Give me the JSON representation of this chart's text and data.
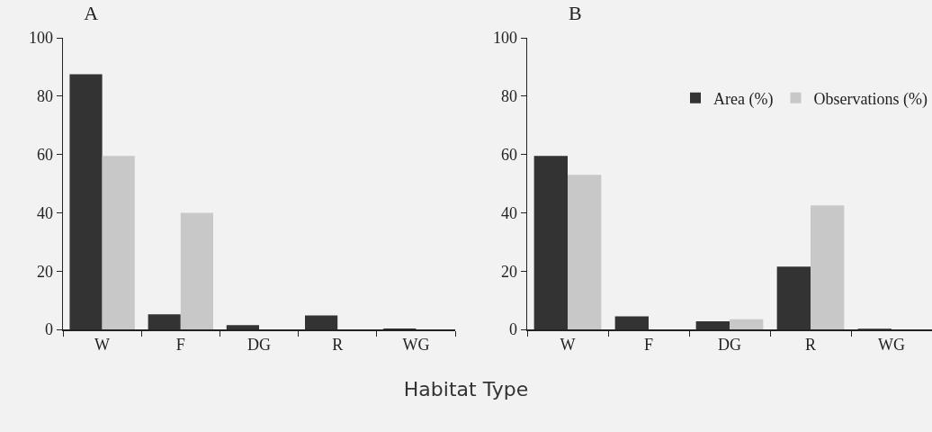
{
  "chart_data": [
    {
      "type": "bar",
      "title": "A",
      "categories": [
        "W",
        "F",
        "DG",
        "R",
        "WG"
      ],
      "series": [
        {
          "color": "#333333",
          "values": [
            87.5,
            5.2,
            1.5,
            4.8,
            0.3
          ]
        },
        {
          "color": "#c8c8c8",
          "values": [
            59.5,
            40,
            0,
            0,
            0
          ]
        }
      ],
      "ylim": [
        0,
        100
      ],
      "yticks": [
        0,
        20,
        40,
        60,
        80,
        100
      ],
      "grid": false,
      "legend": false,
      "xlabel": "Habitat Type"
    },
    {
      "type": "bar",
      "title": "B",
      "categories": [
        "W",
        "F",
        "DG",
        "R",
        "WG"
      ],
      "series": [
        {
          "name": "Area (%)",
          "color": "#333333",
          "values": [
            59.5,
            4.5,
            2.8,
            21.5,
            0.2
          ]
        },
        {
          "name": "Observations (%)",
          "color": "#c8c8c8",
          "values": [
            53,
            0,
            3.5,
            42.5,
            0
          ]
        }
      ],
      "ylim": [
        0,
        100
      ],
      "yticks": [
        0,
        20,
        40,
        60,
        80,
        100
      ],
      "grid": false,
      "legend": "top right"
    }
  ]
}
